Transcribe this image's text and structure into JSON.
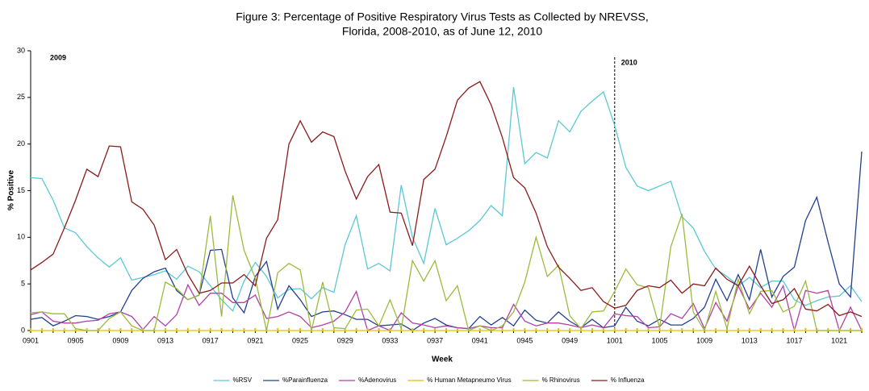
{
  "chart_data": {
    "type": "line",
    "title": "Figure 3: Percentage of Positive Respiratory Virus Tests as Collected by NREVSS,",
    "subtitle": "Florida, 2008-2010, as of June 12,  2010",
    "x_label": "Week",
    "y_label": "% Positive",
    "categories": [
      "0901",
      null,
      null,
      null,
      "0905",
      null,
      null,
      null,
      "0909",
      null,
      null,
      null,
      "0913",
      null,
      null,
      null,
      "0917",
      null,
      null,
      null,
      "0921",
      null,
      null,
      null,
      "0925",
      null,
      null,
      null,
      "0929",
      null,
      null,
      null,
      "0933",
      null,
      null,
      null,
      "0937",
      null,
      null,
      null,
      "0941",
      null,
      null,
      null,
      "0945",
      null,
      null,
      null,
      "0949",
      null,
      null,
      null,
      "1001",
      null,
      null,
      null,
      "1005",
      null,
      null,
      null,
      "1009",
      null,
      null,
      null,
      "1013",
      null,
      null,
      null,
      "1017",
      null,
      null,
      null,
      "1021",
      null,
      null
    ],
    "divider": "1001",
    "annotations": [
      "2009",
      "2010"
    ],
    "ylim": [
      0,
      30
    ],
    "yticks": [
      0,
      5,
      10,
      15,
      20,
      25,
      30
    ],
    "series": [
      {
        "name": "%RSV",
        "color": "#5bc8d4",
        "values": [
          16.4,
          16.3,
          14.0,
          11.0,
          10.5,
          9.0,
          7.8,
          6.8,
          7.8,
          5.4,
          5.7,
          6.0,
          6.4,
          5.5,
          6.9,
          6.3,
          4.8,
          3.3,
          2.1,
          5.3,
          7.3,
          5.8,
          3.5,
          4.4,
          4.5,
          3.4,
          4.6,
          4.1,
          9.2,
          12.3,
          6.6,
          7.2,
          6.4,
          15.6,
          10.0,
          7.2,
          13.1,
          9.2,
          9.9,
          10.7,
          11.8,
          13.4,
          12.3,
          26.1,
          17.9,
          19.1,
          18.5,
          22.5,
          21.3,
          23.5,
          24.6,
          25.6,
          22.0,
          17.5,
          15.5,
          15.0,
          15.5,
          16.0,
          12.2,
          11.0,
          8.5,
          6.6,
          5.8,
          4.8,
          5.7,
          4.6,
          5.3,
          5.3,
          3.3,
          2.7,
          3.2,
          3.6,
          3.7,
          4.8,
          3.1
        ]
      },
      {
        "name": "%Parainfluenza",
        "color": "#23408f",
        "values": [
          1.2,
          1.4,
          0.5,
          1.0,
          1.6,
          1.5,
          1.2,
          1.5,
          2.0,
          4.3,
          5.6,
          6.3,
          6.7,
          4.3,
          3.3,
          3.8,
          8.6,
          8.7,
          3.5,
          1.9,
          5.8,
          7.4,
          2.3,
          4.8,
          3.3,
          1.5,
          2.0,
          2.1,
          1.7,
          1.2,
          1.2,
          0.5,
          0.6,
          0.7,
          0,
          0.8,
          1.3,
          0.6,
          0.3,
          0.2,
          1.5,
          0.6,
          1.4,
          0.5,
          2.2,
          1.1,
          0.8,
          2.0,
          1.0,
          0.3,
          1.2,
          0.3,
          0.5,
          2.5,
          1.0,
          0.5,
          1.2,
          0.6,
          0.6,
          1.3,
          2.5,
          5.5,
          3.2,
          6.0,
          3.3,
          8.7,
          3.6,
          5.8,
          6.8,
          11.8,
          14.3,
          9.5,
          5.0,
          3.6,
          19.2
        ]
      },
      {
        "name": "%Adenovirus",
        "color": "#b23fa6",
        "values": [
          1.7,
          2.0,
          1.0,
          0.8,
          0.8,
          1.0,
          1.1,
          1.8,
          2.0,
          1.5,
          0.1,
          1.5,
          0.5,
          1.7,
          4.9,
          2.7,
          4.0,
          4.0,
          3.0,
          3.0,
          3.8,
          1.3,
          1.5,
          2.0,
          1.5,
          0.3,
          0.6,
          1.0,
          2.0,
          4.2,
          0,
          0.5,
          0,
          1.9,
          0.8,
          0.6,
          0.3,
          0.5,
          0.3,
          0.2,
          0.5,
          0.3,
          0.3,
          2.8,
          1.0,
          0.5,
          0.8,
          0.8,
          0.6,
          0.3,
          0.6,
          0.3,
          1.8,
          1.6,
          1.5,
          0.3,
          0.4,
          1.8,
          1.3,
          2.9,
          0.2,
          3.0,
          1.0,
          4.8,
          2.3,
          4.0,
          2.5,
          4.8,
          0,
          4.3,
          4.0,
          4.3,
          0,
          2.5,
          0
        ]
      },
      {
        "name": "% Human Metapneumo Virus",
        "color": "#e8c000",
        "values": [
          0,
          0,
          0,
          0,
          0,
          0,
          0,
          0,
          0,
          0,
          0,
          0,
          0,
          0,
          0,
          0,
          0,
          0,
          0,
          0,
          0,
          0,
          0,
          0,
          0,
          0,
          0,
          0,
          0,
          0,
          0,
          0,
          0,
          0,
          0,
          0,
          0,
          0,
          0,
          0,
          0,
          0,
          0,
          0,
          0,
          0,
          0,
          0,
          0,
          0,
          0,
          0,
          0,
          0,
          0,
          0,
          0,
          0,
          0,
          0,
          0,
          0,
          0,
          0,
          0,
          0,
          0,
          0,
          0,
          0,
          0,
          0,
          0,
          0,
          0
        ]
      },
      {
        "name": "% Rhinovirus",
        "color": "#9bbb3b",
        "values": [
          1.9,
          2.0,
          1.8,
          1.8,
          0.2,
          0,
          0,
          1.3,
          2.0,
          0.5,
          0,
          0,
          5.2,
          4.5,
          3.3,
          3.8,
          12.3,
          1.5,
          14.5,
          8.6,
          5.6,
          0,
          6.2,
          7.2,
          6.5,
          0,
          5.2,
          0.3,
          0.2,
          2.2,
          2.3,
          0.5,
          3.3,
          0.2,
          7.5,
          5.3,
          7.5,
          3.2,
          4.8,
          0,
          0.5,
          0,
          0.5,
          2.0,
          5.2,
          10.0,
          5.8,
          7.0,
          1.6,
          0.2,
          2.0,
          2.1,
          4.2,
          6.6,
          4.9,
          4.6,
          0.3,
          9.0,
          12.5,
          2.0,
          0,
          4.2,
          0.2,
          5.5,
          1.8,
          4.2,
          4.3,
          2.0,
          2.6,
          5.3,
          0,
          0,
          0,
          0,
          0
        ]
      },
      {
        "name": "% Influenza",
        "color": "#8b1a1a",
        "values": [
          6.5,
          7.3,
          8.2,
          11.0,
          14.0,
          17.3,
          16.5,
          19.8,
          19.7,
          13.8,
          13.0,
          11.3,
          7.6,
          8.7,
          6.0,
          4.0,
          4.3,
          5.1,
          5.1,
          6.0,
          4.8,
          9.9,
          11.9,
          20.0,
          22.5,
          20.2,
          21.3,
          20.8,
          17.1,
          14.1,
          16.5,
          17.8,
          12.7,
          12.6,
          9.1,
          16.2,
          17.3,
          20.8,
          24.7,
          26.0,
          26.7,
          24.2,
          20.7,
          16.4,
          15.3,
          12.6,
          9.0,
          6.8,
          5.6,
          4.3,
          4.6,
          3.1,
          2.4,
          2.7,
          4.3,
          4.8,
          4.6,
          5.4,
          4.0,
          5.0,
          4.8,
          6.7,
          5.5,
          4.8,
          6.9,
          4.8,
          2.9,
          3.3,
          4.5,
          2.3,
          2.1,
          2.8,
          1.6,
          2.0,
          1.5
        ]
      }
    ]
  }
}
